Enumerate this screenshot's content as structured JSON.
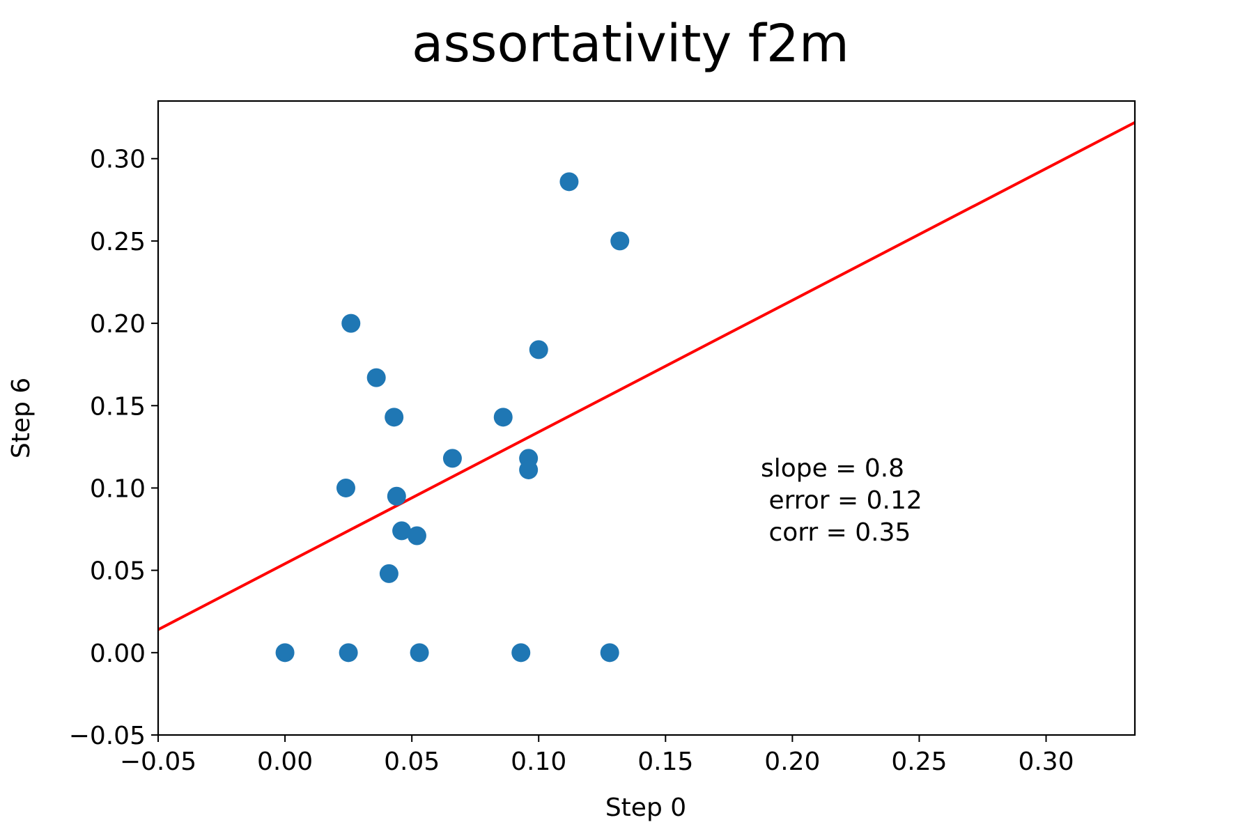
{
  "chart_data": {
    "type": "scatter",
    "title": "assortativity f2m",
    "xlabel": "Step 0",
    "ylabel": "Step 6",
    "xlim": [
      -0.05,
      0.335
    ],
    "ylim": [
      -0.05,
      0.335
    ],
    "xticks": [
      -0.05,
      0.0,
      0.05,
      0.1,
      0.15,
      0.2,
      0.25,
      0.3
    ],
    "yticks": [
      -0.05,
      0.0,
      0.05,
      0.1,
      0.15,
      0.2,
      0.25,
      0.3
    ],
    "xtick_labels": [
      "−0.05",
      "0.00",
      "0.05",
      "0.10",
      "0.15",
      "0.20",
      "0.25",
      "0.30"
    ],
    "ytick_labels": [
      "−0.05",
      "0.00",
      "0.05",
      "0.10",
      "0.15",
      "0.20",
      "0.25",
      "0.30"
    ],
    "grid": false,
    "point_color": "#1f77b4",
    "line_color": "#ff0000",
    "points": [
      {
        "x": 0.112,
        "y": 0.286
      },
      {
        "x": 0.132,
        "y": 0.25
      },
      {
        "x": 0.026,
        "y": 0.2
      },
      {
        "x": 0.1,
        "y": 0.184
      },
      {
        "x": 0.036,
        "y": 0.167
      },
      {
        "x": 0.043,
        "y": 0.143
      },
      {
        "x": 0.086,
        "y": 0.143
      },
      {
        "x": 0.066,
        "y": 0.118
      },
      {
        "x": 0.096,
        "y": 0.118
      },
      {
        "x": 0.096,
        "y": 0.111
      },
      {
        "x": 0.024,
        "y": 0.1
      },
      {
        "x": 0.044,
        "y": 0.095
      },
      {
        "x": 0.046,
        "y": 0.074
      },
      {
        "x": 0.052,
        "y": 0.071
      },
      {
        "x": 0.041,
        "y": 0.048
      },
      {
        "x": 0.0,
        "y": 0.0
      },
      {
        "x": 0.025,
        "y": 0.0
      },
      {
        "x": 0.053,
        "y": 0.0
      },
      {
        "x": 0.093,
        "y": 0.0
      },
      {
        "x": 0.128,
        "y": 0.0
      }
    ],
    "fit_line": {
      "slope": 0.8,
      "intercept": 0.054
    },
    "annotation": [
      "slope = 0.8",
      " error = 0.12",
      " corr = 0.35"
    ]
  }
}
